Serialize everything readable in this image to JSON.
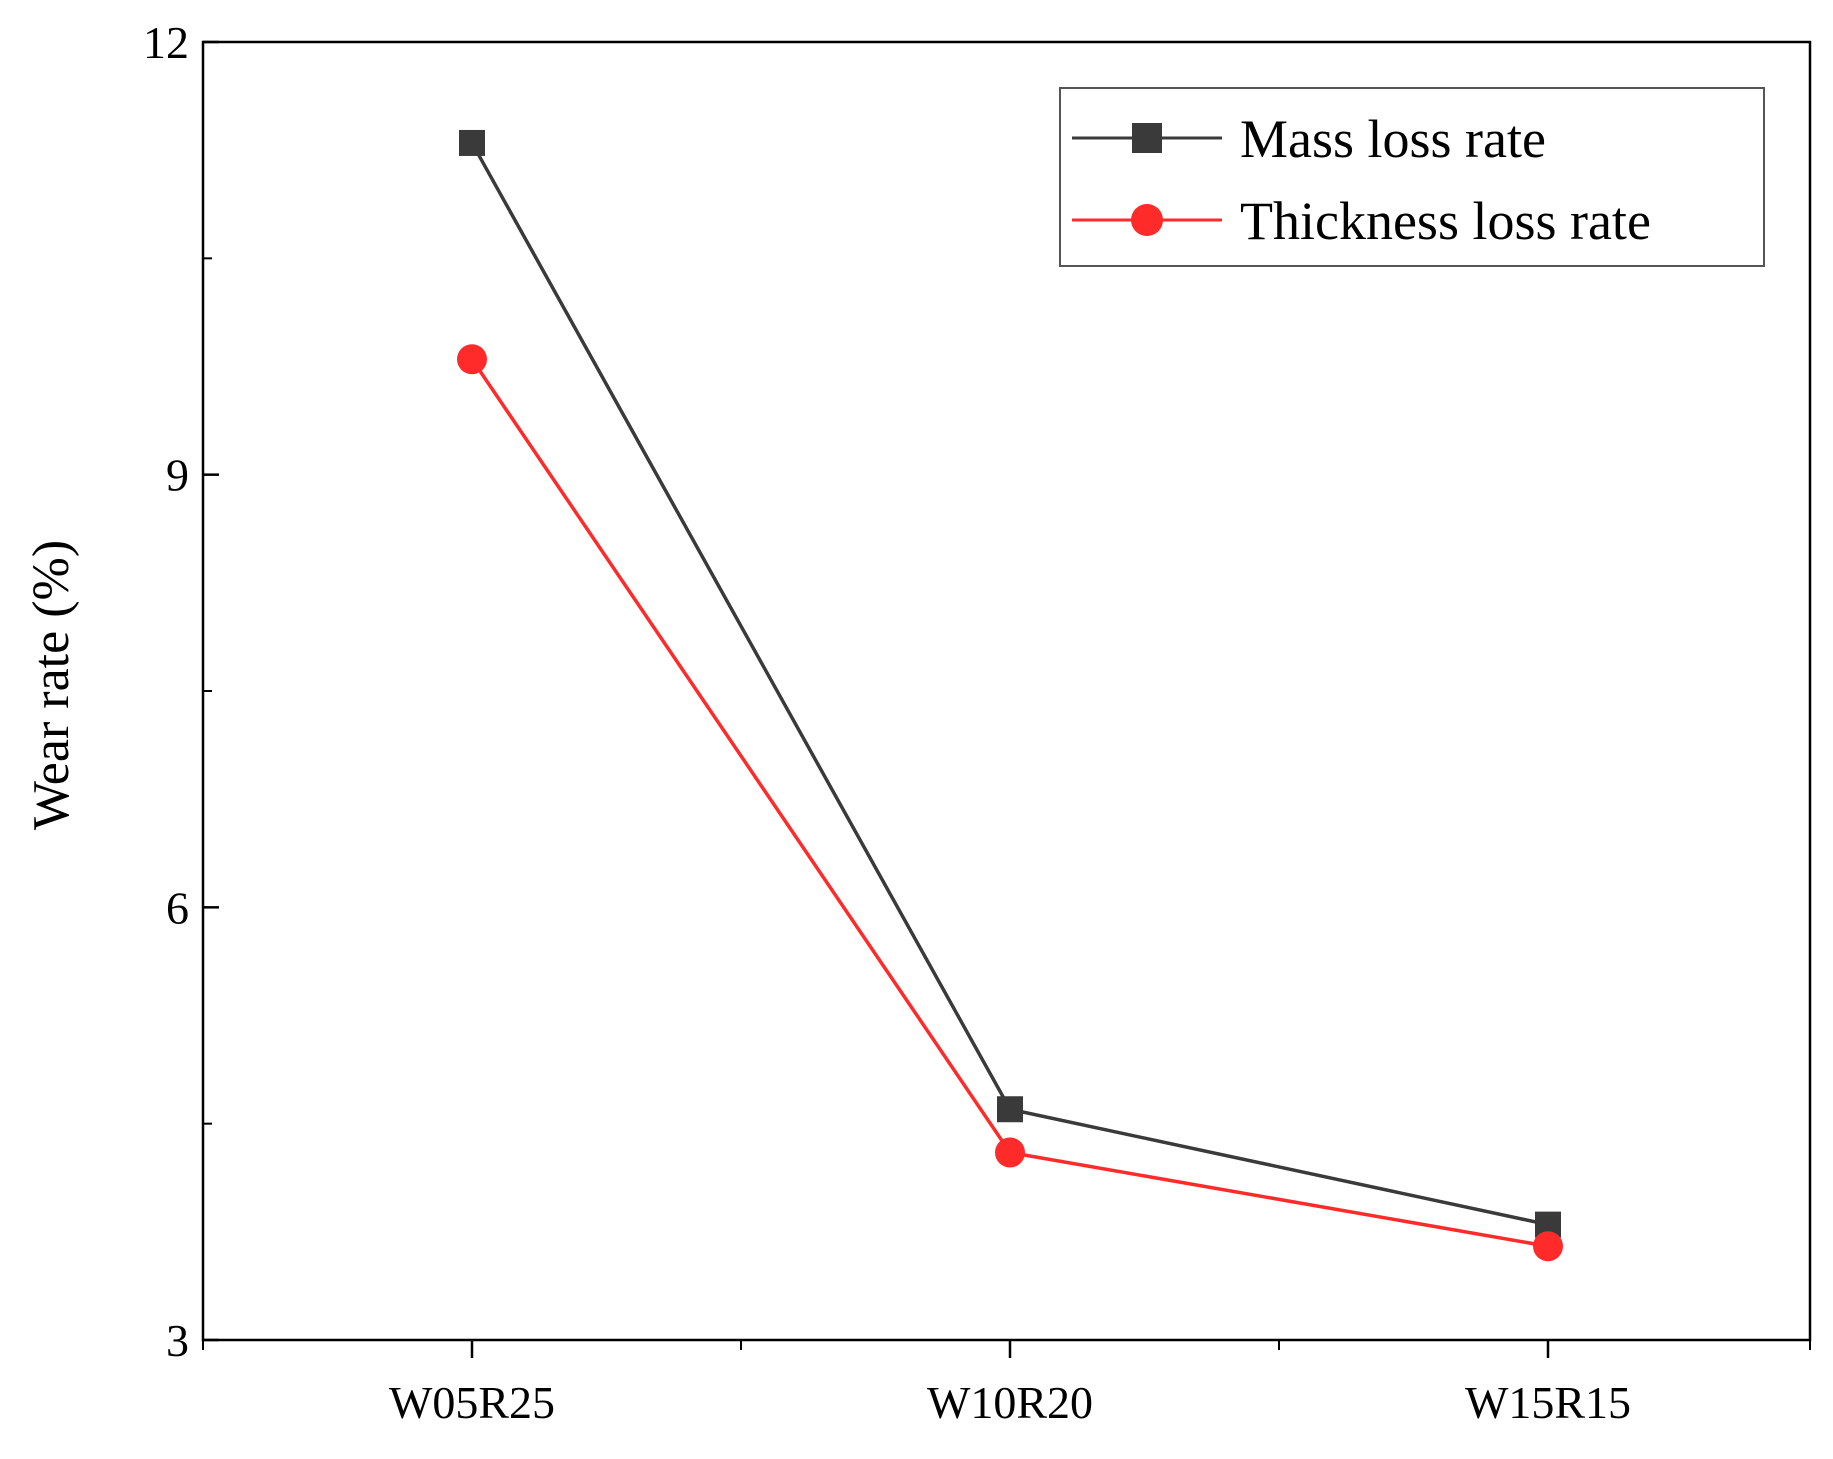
{
  "chart_data": {
    "type": "line",
    "title": "",
    "xlabel": "",
    "ylabel": "Wear rate (%)",
    "categories": [
      "W05R25",
      "W10R20",
      "W15R15"
    ],
    "ylim": [
      3,
      12
    ],
    "yticks": [
      "3",
      "6",
      "9",
      "12"
    ],
    "grid": false,
    "legend_position": "top-right",
    "series": [
      {
        "name": "Mass loss rate",
        "values": [
          11.3,
          4.6,
          3.8
        ],
        "color": "#3a3a3a",
        "marker": "square"
      },
      {
        "name": "Thickness loss rate",
        "values": [
          9.8,
          4.3,
          3.65
        ],
        "color": "#ff2a2a",
        "marker": "circle"
      }
    ]
  }
}
